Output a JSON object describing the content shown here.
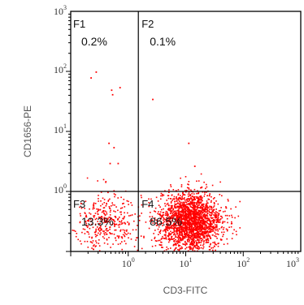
{
  "chart_data": {
    "type": "scatter",
    "title": "",
    "xlabel": "CD3-FITC",
    "ylabel": "CD1656-PE",
    "x_scale": "log",
    "y_scale": "log",
    "xlim": [
      0.1,
      1000
    ],
    "ylim": [
      0.1,
      1000
    ],
    "x_tick_labels": [
      {
        "value": 1,
        "base": "10",
        "exp": "0"
      },
      {
        "value": 10,
        "base": "10",
        "exp": "1"
      },
      {
        "value": 100,
        "base": "10",
        "exp": "2"
      },
      {
        "value": 1000,
        "base": "10",
        "exp": "3"
      }
    ],
    "y_tick_labels": [
      {
        "value": 1,
        "base": "10",
        "exp": "0"
      },
      {
        "value": 10,
        "base": "10",
        "exp": "1"
      },
      {
        "value": 100,
        "base": "10",
        "exp": "2"
      },
      {
        "value": 1000,
        "base": "10",
        "exp": "3"
      }
    ],
    "gate": {
      "x": 1.5,
      "y": 1.0
    },
    "quadrants": [
      {
        "name": "F1",
        "percent": "0.2%",
        "position": "top-left"
      },
      {
        "name": "F2",
        "percent": "0.1%",
        "position": "top-right"
      },
      {
        "name": "F3",
        "percent": "13.3%",
        "position": "bottom-left"
      },
      {
        "name": "F4",
        "percent": "86.5%",
        "position": "bottom-right"
      }
    ],
    "sparse_events": [
      [
        0.22,
        80
      ],
      [
        0.27,
        100
      ],
      [
        0.5,
        50
      ],
      [
        0.52,
        42
      ],
      [
        0.7,
        55
      ],
      [
        2.6,
        35
      ],
      [
        0.45,
        6.5
      ],
      [
        0.55,
        5.5
      ],
      [
        0.47,
        3.0
      ],
      [
        0.65,
        3.0
      ],
      [
        11,
        6.5
      ],
      [
        14,
        2.7
      ]
    ],
    "clusters": [
      {
        "name": "F3",
        "center": [
          0.4,
          0.32
        ],
        "spread": [
          0.3,
          0.26
        ],
        "count": 380
      },
      {
        "name": "F4",
        "center": [
          12,
          0.32
        ],
        "spread": [
          0.27,
          0.24
        ],
        "count": 2200
      }
    ],
    "colors": {
      "points": "#ff0000",
      "axes": "#000000",
      "background": "#ffffff"
    }
  }
}
